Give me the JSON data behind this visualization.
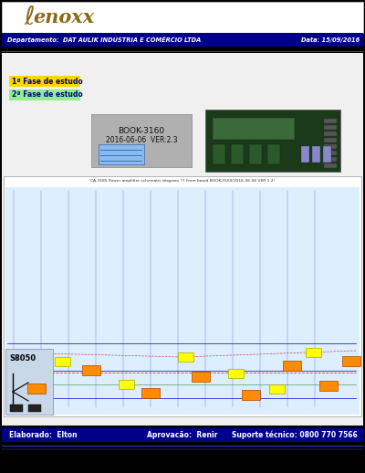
{
  "bg_color": "#000000",
  "header_bg": "#ffffff",
  "dark_bar_color": "#00008B",
  "dark_bar_text": "Departamento:  DAT AULIK INDÚSTRIA E COMÉRCIO LTDA",
  "dark_bar_date": "Data: 15/09/2016",
  "fase1_text": "1ª Fase de estudo",
  "fase2_text": "2ª Fase de estudo",
  "fase1_color": "#FFD700",
  "fase2_color": "#90EE90",
  "footer_text_left": "Elaborado:  Elton",
  "footer_text_mid": "Aprovacão:  Renir",
  "footer_text_right": "Suporte técnico: 0800 770 7566",
  "footer_bg": "#00008B",
  "footer_text_color": "#ffffff",
  "schematic_label": "CA-3185 Power amplifier schematic diagram !!! From board BOOK-3160/2016-06-06 VER 1.2!",
  "logo_text": "enoxx",
  "logo_color": "#8B6914",
  "logo_slash_color": "#8B6914"
}
